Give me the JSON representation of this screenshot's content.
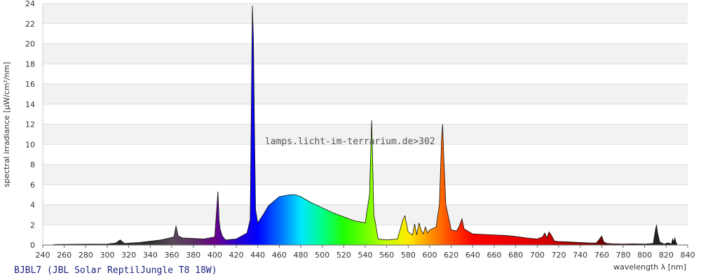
{
  "chart_data": {
    "type": "area",
    "ylabel": "spectral irradiance [µW/cm²/nm]",
    "xlabel": "wavelength λ [nm]",
    "watermark": "lamps.licht-im-terrarium.de>302",
    "lamp_label": "BJBL7 (JBL Solar ReptilJungle T8 18W)",
    "xlim": [
      240,
      840
    ],
    "ylim": [
      0,
      24
    ],
    "x_ticks": [
      240,
      260,
      280,
      300,
      320,
      340,
      360,
      380,
      400,
      420,
      440,
      460,
      480,
      500,
      520,
      540,
      560,
      580,
      600,
      620,
      640,
      660,
      680,
      700,
      720,
      740,
      760,
      780,
      800,
      820,
      840
    ],
    "y_ticks": [
      0,
      2,
      4,
      6,
      8,
      10,
      12,
      14,
      16,
      18,
      20,
      22,
      24
    ],
    "grid": "horizontal alternating bands",
    "x": [
      250,
      300,
      308,
      312,
      316,
      330,
      350,
      362,
      364,
      366,
      370,
      380,
      390,
      400,
      403,
      404,
      405,
      407,
      410,
      420,
      430,
      433,
      435,
      436,
      437,
      438,
      440,
      445,
      450,
      460,
      470,
      475,
      480,
      490,
      500,
      510,
      520,
      530,
      540,
      544,
      546,
      547,
      548,
      550,
      552,
      560,
      570,
      575,
      577,
      578,
      580,
      584,
      586,
      588,
      590,
      592,
      594,
      596,
      598,
      600,
      606,
      609,
      611,
      612,
      613,
      615,
      620,
      625,
      628,
      630,
      632,
      640,
      650,
      660,
      670,
      680,
      690,
      700,
      705,
      707,
      709,
      711,
      713,
      716,
      720,
      730,
      740,
      750,
      755,
      758,
      760,
      762,
      765,
      770,
      780,
      790,
      800,
      808,
      810,
      811,
      812,
      814,
      818,
      820,
      822,
      825,
      826,
      827,
      828,
      829,
      830
    ],
    "values": [
      0.05,
      0.1,
      0.2,
      0.5,
      0.15,
      0.25,
      0.5,
      0.8,
      1.9,
      0.9,
      0.7,
      0.65,
      0.6,
      0.8,
      5.3,
      2.5,
      1.6,
      0.9,
      0.5,
      0.6,
      1.2,
      2.5,
      23.8,
      20.5,
      11.0,
      3.5,
      2.2,
      3.0,
      3.9,
      4.8,
      5.0,
      5.0,
      4.8,
      4.2,
      3.7,
      3.2,
      2.8,
      2.4,
      2.2,
      5.0,
      12.4,
      8.0,
      3.0,
      1.9,
      0.6,
      0.5,
      0.6,
      2.5,
      2.9,
      2.3,
      1.3,
      1.0,
      2.1,
      1.0,
      2.2,
      1.5,
      1.1,
      1.8,
      1.2,
      1.5,
      1.8,
      4.0,
      10.5,
      12.0,
      9.0,
      4.0,
      1.5,
      1.4,
      2.0,
      2.6,
      1.6,
      1.1,
      1.05,
      1.0,
      0.95,
      0.85,
      0.7,
      0.6,
      0.8,
      1.2,
      0.7,
      1.3,
      1.0,
      0.4,
      0.35,
      0.3,
      0.25,
      0.2,
      0.2,
      0.6,
      0.9,
      0.3,
      0.15,
      0.12,
      0.1,
      0.12,
      0.1,
      0.15,
      1.5,
      2.0,
      1.2,
      0.3,
      0.1,
      0.15,
      0.2,
      0.1,
      0.6,
      0.3,
      0.7,
      0.3,
      0.1
    ]
  }
}
